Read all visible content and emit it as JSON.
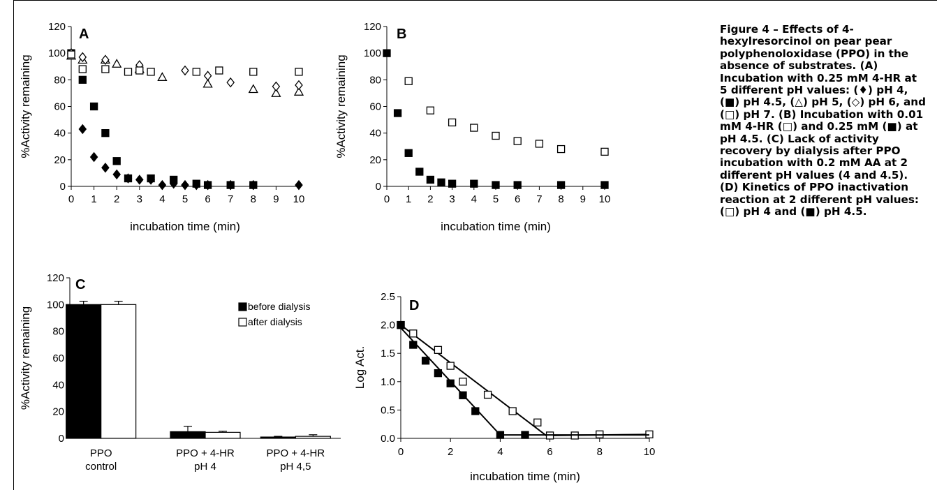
{
  "caption": {
    "title": "Figure 4 – Effects of 4-hexylresorcinol on pear pear polyphenoloxidase (PPO) in the absence of substrates.",
    "body": "(A) Incubation with 0.25 mM 4-HR at 5 different pH values: (♦) pH 4, (■) pH 4.5, (△) pH 5, (◇) pH 6, and (□) pH 7. (B) Incubation with 0.01 mM 4-HR (□) and 0.25 mM (■) at pH 4.5. (C) Lack of activity recovery by dialysis after PPO incubation with 0.2 mM AA at 2 different pH values (4 and 4.5). (D) Kinetics of PPO inactivation reaction at 2 different pH values: (□) pH 4 and (■) pH 4.5."
  },
  "colors": {
    "ink": "#000000",
    "background": "#ffffff",
    "empty_fill": "#ffffff"
  },
  "chart_data": [
    {
      "id": "A",
      "type": "scatter",
      "panel_label": "A",
      "xlabel": "incubation time (min)",
      "ylabel": "%Activity  remaining",
      "xlim": [
        0,
        10
      ],
      "ylim": [
        0,
        120
      ],
      "xticks": [
        0,
        1,
        2,
        3,
        4,
        5,
        6,
        7,
        8,
        9,
        10
      ],
      "yticks": [
        0,
        20,
        40,
        60,
        80,
        100,
        120
      ],
      "series": [
        {
          "marker": "diamond-filled",
          "x": [
            0,
            0.5,
            1,
            1.5,
            2,
            2.5,
            3,
            3.5,
            4,
            4.5,
            5,
            5.5,
            6,
            7,
            8,
            10
          ],
          "y": [
            100,
            43,
            22,
            14,
            9,
            6,
            5,
            5,
            1,
            2,
            1,
            1,
            1,
            1,
            1,
            1
          ]
        },
        {
          "marker": "square-filled",
          "x": [
            0,
            0.5,
            1,
            1.5,
            2,
            2.5,
            3.5,
            4.5,
            5.5,
            6,
            7,
            8
          ],
          "y": [
            100,
            80,
            60,
            40,
            19,
            6,
            6,
            5,
            2,
            1,
            1,
            1
          ]
        },
        {
          "marker": "triangle-open",
          "x": [
            0,
            0.5,
            1.5,
            2,
            3,
            4,
            6,
            8,
            9,
            10
          ],
          "y": [
            98,
            95,
            95,
            92,
            88,
            82,
            77,
            73,
            70,
            71
          ]
        },
        {
          "marker": "diamond-open",
          "x": [
            0,
            0.5,
            1.5,
            3,
            5,
            6,
            7,
            9,
            10
          ],
          "y": [
            100,
            97,
            95,
            91,
            87,
            83,
            78,
            75,
            76
          ]
        },
        {
          "marker": "square-open",
          "x": [
            0,
            0.5,
            1.5,
            2.5,
            3,
            3.5,
            5.5,
            6.5,
            8,
            10
          ],
          "y": [
            99,
            88,
            88,
            86,
            87,
            86,
            86,
            87,
            86,
            86
          ]
        }
      ]
    },
    {
      "id": "B",
      "type": "scatter",
      "panel_label": "B",
      "xlabel": "incubation time (min)",
      "ylabel": "%Activity  remaining",
      "xlim": [
        0,
        10
      ],
      "ylim": [
        0,
        120
      ],
      "xticks": [
        0,
        1,
        2,
        3,
        4,
        5,
        6,
        7,
        8,
        9,
        10
      ],
      "yticks": [
        0,
        20,
        40,
        60,
        80,
        100,
        120
      ],
      "series": [
        {
          "marker": "square-filled",
          "x": [
            0,
            0.5,
            1,
            1.5,
            2,
            2.5,
            3,
            4,
            5,
            6,
            8,
            10
          ],
          "y": [
            100,
            55,
            25,
            11,
            5,
            3,
            2,
            2,
            1,
            1,
            1,
            1
          ]
        },
        {
          "marker": "square-open",
          "x": [
            1,
            2,
            3,
            4,
            5,
            6,
            7,
            8,
            10
          ],
          "y": [
            79,
            57,
            48,
            44,
            38,
            34,
            32,
            28,
            26
          ]
        }
      ]
    },
    {
      "id": "C",
      "type": "bar",
      "panel_label": "C",
      "ylabel": "%Activity  remaining",
      "ylim": [
        0,
        120
      ],
      "yticks": [
        0,
        20,
        40,
        60,
        80,
        100,
        120
      ],
      "categories": [
        [
          "PPO",
          "control"
        ],
        [
          "PPO + 4-HR",
          "pH 4"
        ],
        [
          "PPO + 4-HR",
          "pH 4,5"
        ]
      ],
      "series": [
        {
          "name": "before dialysis",
          "fill": "#000000",
          "values": [
            100,
            5,
            1
          ],
          "errors": [
            2.5,
            4,
            0.5
          ]
        },
        {
          "name": "after dialysis",
          "fill": "#ffffff",
          "values": [
            100,
            4.5,
            1.5
          ],
          "errors": [
            2.5,
            0.8,
            1.2
          ]
        }
      ],
      "legend_position": "top-right"
    },
    {
      "id": "D",
      "type": "line",
      "panel_label": "D",
      "xlabel": "incubation time (min)",
      "ylabel": "Log Act.",
      "xlim": [
        0,
        10
      ],
      "ylim": [
        0,
        2.5
      ],
      "xticks": [
        0,
        2,
        4,
        6,
        8,
        10
      ],
      "yticks": [
        0,
        0.5,
        1.0,
        1.5,
        2.0,
        2.5
      ],
      "ytick_labels": [
        "0.0",
        "0.5",
        "1.0",
        "1.5",
        "2.0",
        "2.5"
      ],
      "series": [
        {
          "marker": "square-open",
          "x": [
            0,
            0.5,
            1.5,
            2,
            2.5,
            3.5,
            4.5,
            5.5,
            6,
            7,
            8,
            10
          ],
          "y": [
            2.0,
            1.85,
            1.56,
            1.28,
            1.0,
            0.77,
            0.48,
            0.28,
            0.05,
            0.05,
            0.07,
            0.07
          ],
          "fit": [
            [
              0,
              2.0
            ],
            [
              5.85,
              0.05
            ],
            [
              10,
              0.07
            ]
          ]
        },
        {
          "marker": "square-filled",
          "x": [
            0,
            0.5,
            1,
            1.5,
            2,
            2.5,
            3,
            4,
            5
          ],
          "y": [
            2.0,
            1.65,
            1.37,
            1.15,
            0.97,
            0.76,
            0.48,
            0.06,
            0.06
          ],
          "fit": [
            [
              0,
              1.95
            ],
            [
              4,
              0.06
            ],
            [
              10,
              0.06
            ]
          ]
        }
      ]
    }
  ]
}
